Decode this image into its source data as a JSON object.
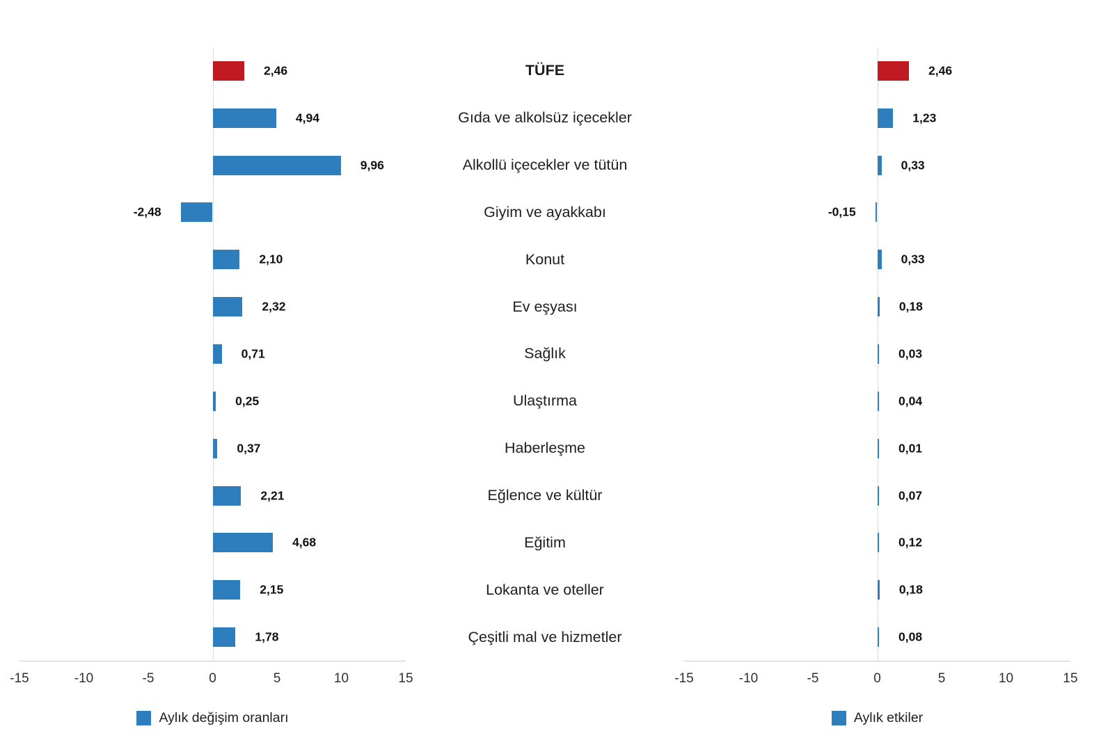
{
  "colors": {
    "bar": "#2e7dbc",
    "highlight": "#c01b22"
  },
  "legends": {
    "left": "Aylık değişim oranları",
    "right": "Aylık etkiler"
  },
  "highlight_category": "TÜFE",
  "chart_data": [
    {
      "type": "bar",
      "orientation": "horizontal",
      "title": "Aylık değişim oranları",
      "categories": [
        "TÜFE",
        "Gıda ve alkolsüz içecekler",
        "Alkollü içecekler ve tütün",
        "Giyim ve ayakkabı",
        "Konut",
        "Ev eşyası",
        "Sağlık",
        "Ulaştırma",
        "Haberleşme",
        "Eğlence ve kültür",
        "Eğitim",
        "Lokanta ve oteller",
        "Çeşitli mal ve hizmetler"
      ],
      "values": [
        2.46,
        4.94,
        9.96,
        -2.48,
        2.1,
        2.32,
        0.71,
        0.25,
        0.37,
        2.21,
        4.68,
        2.15,
        1.78
      ],
      "value_labels": [
        "2,46",
        "4,94",
        "9,96",
        "-2,48",
        "2,10",
        "2,32",
        "0,71",
        "0,25",
        "0,37",
        "2,21",
        "4,68",
        "2,15",
        "1,78"
      ],
      "xlim": [
        -15,
        15
      ],
      "ticks": [
        -15,
        -10,
        -5,
        0,
        5,
        10,
        15
      ],
      "bar_color": "#2e7dbc",
      "highlight_index": 0,
      "highlight_color": "#c01b22",
      "grid": false,
      "legend_position": "bottom"
    },
    {
      "type": "bar",
      "orientation": "horizontal",
      "title": "Aylık etkiler",
      "categories": [
        "TÜFE",
        "Gıda ve alkolsüz içecekler",
        "Alkollü içecekler ve tütün",
        "Giyim ve ayakkabı",
        "Konut",
        "Ev eşyası",
        "Sağlık",
        "Ulaştırma",
        "Haberleşme",
        "Eğlence ve kültür",
        "Eğitim",
        "Lokanta ve oteller",
        "Çeşitli mal ve hizmetler"
      ],
      "values": [
        2.46,
        1.23,
        0.33,
        -0.15,
        0.33,
        0.18,
        0.03,
        0.04,
        0.01,
        0.07,
        0.12,
        0.18,
        0.08
      ],
      "value_labels": [
        "2,46",
        "1,23",
        "0,33",
        "-0,15",
        "0,33",
        "0,18",
        "0,03",
        "0,04",
        "0,01",
        "0,07",
        "0,12",
        "0,18",
        "0,08"
      ],
      "xlim": [
        -15,
        15
      ],
      "ticks": [
        -15,
        -10,
        -5,
        0,
        5,
        10,
        15
      ],
      "bar_color": "#2e7dbc",
      "highlight_index": 0,
      "highlight_color": "#c01b22",
      "grid": false,
      "legend_position": "bottom"
    }
  ]
}
